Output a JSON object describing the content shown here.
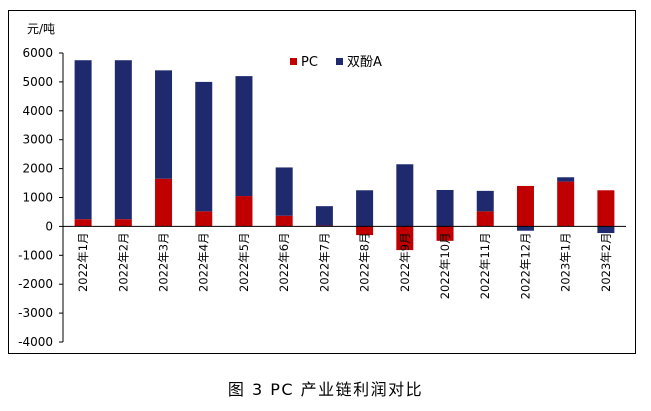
{
  "caption": "图 3  PC 产业链利润对比",
  "chart_data": {
    "type": "bar",
    "stacked": true,
    "unit_label": "元/吨",
    "categories": [
      "2022年1月",
      "2022年2月",
      "2022年3月",
      "2022年4月",
      "2022年5月",
      "2022年6月",
      "2022年7月",
      "2022年8月",
      "2022年9月",
      "2022年10月",
      "2022年11月",
      "2022年12月",
      "2023年1月",
      "2023年2月"
    ],
    "series": [
      {
        "name": "PC",
        "color": "#c00000",
        "values": [
          250,
          250,
          1650,
          520,
          1050,
          370,
          30,
          -300,
          -820,
          -500,
          520,
          1400,
          1550,
          1250
        ]
      },
      {
        "name": "双酚A",
        "color": "#1f2a6e",
        "values": [
          5500,
          5500,
          3750,
          4480,
          4150,
          1670,
          670,
          1250,
          2150,
          1260,
          710,
          -150,
          150,
          -230
        ]
      }
    ],
    "ylim": [
      -4000,
      6000
    ],
    "yticks": [
      6000,
      5000,
      4000,
      3000,
      2000,
      1000,
      0,
      -1000,
      -2000,
      -3000,
      -4000
    ],
    "legend_position": "top-center",
    "grid": false
  }
}
